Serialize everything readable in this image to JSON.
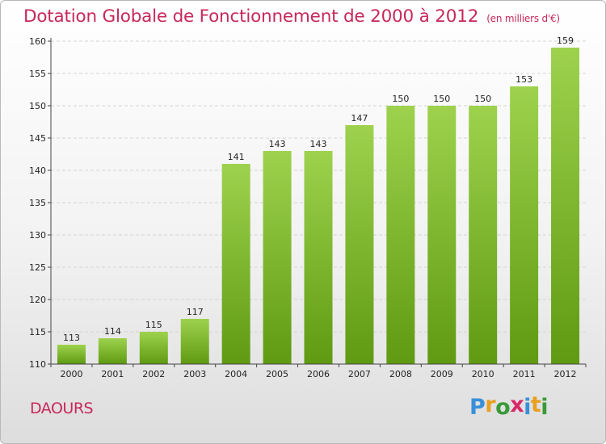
{
  "chart_data": {
    "type": "bar",
    "title": "Dotation Globale de Fonctionnement de 2000 à 2012",
    "unit_note": "(en milliers d'€)",
    "categories": [
      "2000",
      "2001",
      "2002",
      "2003",
      "2004",
      "2005",
      "2006",
      "2007",
      "2008",
      "2009",
      "2010",
      "2011",
      "2012"
    ],
    "values": [
      113,
      114,
      115,
      117,
      141,
      143,
      143,
      147,
      150,
      150,
      150,
      153,
      159
    ],
    "ylim": [
      110,
      160
    ],
    "yticks": [
      110,
      115,
      120,
      125,
      130,
      135,
      140,
      145,
      150,
      155,
      160
    ],
    "grid": true,
    "colors": {
      "bar_top": "#9ed24e",
      "bar_bottom": "#5f9a12"
    }
  },
  "commune": "DAOURS",
  "logo": {
    "letters": [
      "P",
      "r",
      "o",
      "x",
      "i",
      "t",
      "i"
    ],
    "colors": [
      "#3a8fd8",
      "#e8a020",
      "#3a9a3a",
      "#d8286a",
      "#3a8fd8",
      "#e8a020",
      "#3a9a3a"
    ]
  }
}
